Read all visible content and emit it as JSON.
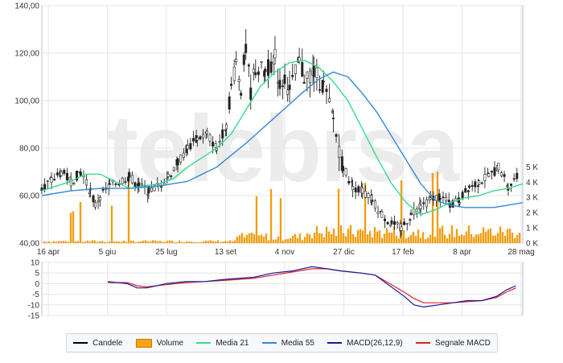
{
  "chart_data": [
    {
      "type": "candlestick",
      "title": "",
      "x_tick_labels": [
        "16 apr",
        "5 giu",
        "25 lug",
        "13 set",
        "4 nov",
        "27 dic",
        "17 feb",
        "8 apr",
        "28 mag"
      ],
      "y_tick_labels": [
        "40,00",
        "60,00",
        "80,00",
        "100,00",
        "120,00",
        "140,00"
      ],
      "ylim": [
        40,
        140
      ],
      "volume_axis": {
        "tick_labels": [
          "0 K",
          "1 K",
          "2 K",
          "3 K",
          "4 K",
          "5 K"
        ],
        "ylim": [
          0,
          5.6
        ]
      },
      "grid": true,
      "watermark": "telebrsa",
      "series": [
        {
          "name": "Candele",
          "color": "#000000"
        },
        {
          "name": "Volume",
          "color": "#f7a20f"
        },
        {
          "name": "Media 21",
          "color": "#33dd88",
          "values": [
            [
              0,
              62
            ],
            [
              15,
              64
            ],
            [
              30,
              66
            ],
            [
              45,
              69
            ],
            [
              60,
              69
            ],
            [
              75,
              66
            ],
            [
              90,
              63
            ],
            [
              105,
              64
            ],
            [
              120,
              65
            ],
            [
              135,
              67
            ],
            [
              150,
              72
            ],
            [
              165,
              76
            ],
            [
              180,
              80
            ],
            [
              195,
              86
            ],
            [
              210,
              96
            ],
            [
              225,
              106
            ],
            [
              240,
              112
            ],
            [
              255,
              116
            ],
            [
              270,
              117
            ],
            [
              285,
              114
            ],
            [
              300,
              108
            ],
            [
              315,
              100
            ],
            [
              330,
              88
            ],
            [
              345,
              76
            ],
            [
              360,
              65
            ],
            [
              375,
              57
            ],
            [
              390,
              52
            ],
            [
              405,
              54
            ],
            [
              420,
              57
            ],
            [
              435,
              59
            ],
            [
              450,
              60
            ],
            [
              465,
              62
            ],
            [
              480,
              63
            ],
            [
              495,
              65
            ]
          ]
        },
        {
          "name": "Media 55",
          "color": "#3388dd",
          "values": [
            [
              0,
              60
            ],
            [
              30,
              62
            ],
            [
              60,
              63
            ],
            [
              90,
              63
            ],
            [
              120,
              64
            ],
            [
              150,
              66
            ],
            [
              180,
              72
            ],
            [
              210,
              82
            ],
            [
              240,
              93
            ],
            [
              270,
              104
            ],
            [
              285,
              109
            ],
            [
              300,
              112
            ],
            [
              315,
              110
            ],
            [
              330,
              103
            ],
            [
              345,
              95
            ],
            [
              360,
              85
            ],
            [
              375,
              75
            ],
            [
              390,
              65
            ],
            [
              405,
              58
            ],
            [
              420,
              56
            ],
            [
              435,
              55
            ],
            [
              450,
              55
            ],
            [
              465,
              55
            ],
            [
              480,
              56
            ],
            [
              495,
              57
            ]
          ]
        }
      ],
      "candles_approx": [
        [
          0,
          64
        ],
        [
          10,
          66
        ],
        [
          20,
          70
        ],
        [
          30,
          66
        ],
        [
          40,
          70
        ],
        [
          50,
          62
        ],
        [
          55,
          56
        ],
        [
          60,
          60
        ],
        [
          70,
          64
        ],
        [
          80,
          66
        ],
        [
          90,
          68
        ],
        [
          100,
          64
        ],
        [
          110,
          62
        ],
        [
          120,
          64
        ],
        [
          130,
          68
        ],
        [
          140,
          74
        ],
        [
          150,
          80
        ],
        [
          160,
          84
        ],
        [
          170,
          86
        ],
        [
          180,
          80
        ],
        [
          190,
          90
        ],
        [
          195,
          106
        ],
        [
          200,
          116
        ],
        [
          205,
          106
        ],
        [
          210,
          122
        ],
        [
          215,
          104
        ],
        [
          220,
          114
        ],
        [
          230,
          112
        ],
        [
          240,
          118
        ],
        [
          245,
          106
        ],
        [
          250,
          110
        ],
        [
          255,
          104
        ],
        [
          265,
          116
        ],
        [
          270,
          110
        ],
        [
          280,
          112
        ],
        [
          290,
          106
        ],
        [
          300,
          92
        ],
        [
          310,
          72
        ],
        [
          320,
          64
        ],
        [
          330,
          62
        ],
        [
          340,
          58
        ],
        [
          350,
          52
        ],
        [
          360,
          48
        ],
        [
          370,
          46
        ],
        [
          380,
          52
        ],
        [
          390,
          56
        ],
        [
          400,
          58
        ],
        [
          410,
          60
        ],
        [
          420,
          56
        ],
        [
          430,
          58
        ],
        [
          440,
          64
        ],
        [
          450,
          66
        ],
        [
          460,
          68
        ],
        [
          470,
          72
        ],
        [
          480,
          64
        ],
        [
          490,
          68
        ]
      ]
    },
    {
      "type": "line",
      "title": "",
      "y_tick_labels": [
        "-15",
        "-10",
        "-5",
        "0",
        "5",
        "10"
      ],
      "ylim": [
        -15,
        10
      ],
      "grid": true,
      "series": [
        {
          "name": "MACD(26,12,9)",
          "color": "#1a1a9a",
          "values": [
            [
              0,
              1
            ],
            [
              20,
              0
            ],
            [
              30,
              -2
            ],
            [
              40,
              -2
            ],
            [
              60,
              0
            ],
            [
              80,
              1
            ],
            [
              100,
              1
            ],
            [
              120,
              2
            ],
            [
              150,
              3
            ],
            [
              170,
              5
            ],
            [
              190,
              6
            ],
            [
              210,
              8
            ],
            [
              225,
              7
            ],
            [
              240,
              6
            ],
            [
              260,
              5
            ],
            [
              275,
              4
            ],
            [
              290,
              -1
            ],
            [
              305,
              -6
            ],
            [
              315,
              -10
            ],
            [
              325,
              -11
            ],
            [
              340,
              -10
            ],
            [
              355,
              -9
            ],
            [
              370,
              -8
            ],
            [
              385,
              -8
            ],
            [
              400,
              -6
            ],
            [
              410,
              -3
            ],
            [
              420,
              -1
            ],
            [
              440,
              0
            ],
            [
              460,
              1
            ],
            [
              480,
              2
            ],
            [
              495,
              2
            ]
          ]
        },
        {
          "name": "Segnale MACD",
          "color": "#dd2222",
          "values": [
            [
              0,
              0.5
            ],
            [
              20,
              0.5
            ],
            [
              30,
              -1
            ],
            [
              40,
              -1.5
            ],
            [
              60,
              -0.5
            ],
            [
              80,
              0.5
            ],
            [
              100,
              1
            ],
            [
              120,
              1.5
            ],
            [
              150,
              2.5
            ],
            [
              170,
              4
            ],
            [
              190,
              5.5
            ],
            [
              210,
              7
            ],
            [
              225,
              7
            ],
            [
              240,
              6
            ],
            [
              260,
              5
            ],
            [
              275,
              4
            ],
            [
              290,
              0
            ],
            [
              305,
              -4
            ],
            [
              315,
              -7
            ],
            [
              325,
              -9
            ],
            [
              340,
              -9
            ],
            [
              355,
              -9
            ],
            [
              370,
              -8.5
            ],
            [
              385,
              -8
            ],
            [
              400,
              -6.5
            ],
            [
              410,
              -4
            ],
            [
              420,
              -2
            ],
            [
              440,
              -0.5
            ],
            [
              460,
              0.5
            ],
            [
              480,
              1.5
            ],
            [
              495,
              2
            ]
          ]
        }
      ]
    }
  ]
}
